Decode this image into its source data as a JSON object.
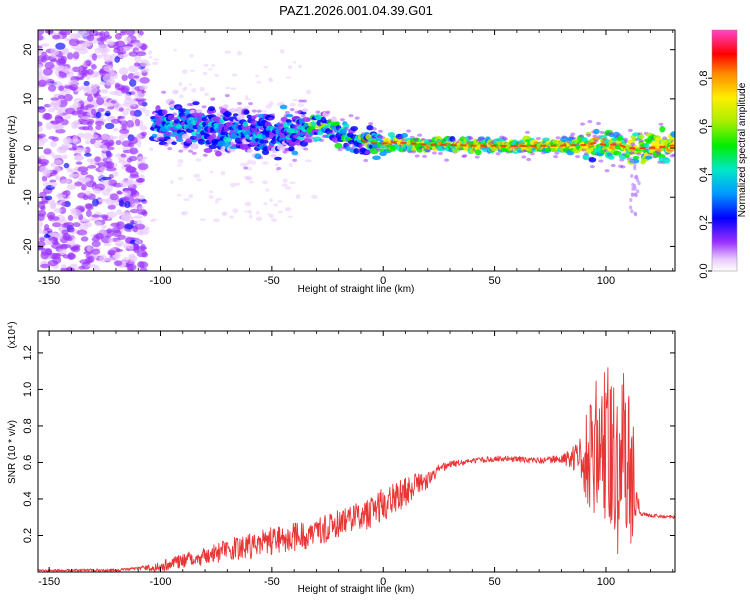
{
  "title": "PAZ1.2026.001.04.39.G01",
  "chart_data": [
    {
      "id": "spectrogram",
      "type": "heatmap",
      "xlabel": "Height of straight line (km)",
      "ylabel": "Frequency (Hz)",
      "xlim": [
        -155,
        131
      ],
      "ylim": [
        -25,
        24
      ],
      "xticks": [
        -150,
        -100,
        -50,
        0,
        50,
        100
      ],
      "xtick_labels": [
        "-150",
        "-100",
        "-50",
        "0",
        "50",
        "100"
      ],
      "yticks": [
        -20,
        -10,
        0,
        10,
        20
      ],
      "ytick_labels": [
        "-20",
        "-10",
        "0",
        "10",
        "20"
      ],
      "ridge": {
        "x": [
          -100,
          -90,
          -80,
          -70,
          -60,
          -50,
          -40,
          -35,
          -30,
          -25,
          -20,
          -15,
          -10,
          -5,
          0,
          5,
          10,
          20,
          40,
          60,
          80,
          90,
          95,
          100,
          105,
          110,
          115,
          120,
          130
        ],
        "y": [
          5,
          4.6,
          4.0,
          3.5,
          3.2,
          2.8,
          3.2,
          4.2,
          4.6,
          4.0,
          3.2,
          2.2,
          1.5,
          1.0,
          0.9,
          1.2,
          1.0,
          0.7,
          0.5,
          0.4,
          0.5,
          0.6,
          1.0,
          0.6,
          0.8,
          0.0,
          -0.1,
          0.0,
          0.5
        ]
      },
      "colorbar": {
        "label": "Normalized spectral amplitude",
        "range": [
          0,
          1
        ],
        "ticks": [
          0.0,
          0.2,
          0.4,
          0.6,
          0.8
        ],
        "tick_labels": [
          "0.0",
          "0.2",
          "0.4",
          "0.6",
          "0.8"
        ]
      }
    },
    {
      "id": "snr",
      "type": "line",
      "xlabel": "Height of straight line (km)",
      "ylabel": "SNR (10 * v/v)",
      "y_multiplier_label": "(x10⁴)",
      "xlim": [
        -155,
        131
      ],
      "ylim": [
        0,
        1.32
      ],
      "xticks": [
        -150,
        -100,
        -50,
        0,
        50,
        100
      ],
      "xtick_labels": [
        "-150",
        "-100",
        "-50",
        "0",
        "50",
        "100"
      ],
      "yticks": [
        0.2,
        0.4,
        0.6,
        0.8,
        1.0,
        1.2
      ],
      "ytick_labels": [
        "0.2",
        "0.4",
        "0.6",
        "0.8",
        "1.0",
        "1.2"
      ],
      "series": [
        {
          "name": "SNR",
          "color": "#e83535",
          "envelope_x": [
            -155,
            -120,
            -100,
            -90,
            -80,
            -70,
            -60,
            -50,
            -40,
            -30,
            -20,
            -10,
            0,
            10,
            20,
            25,
            30,
            40,
            50,
            60,
            70,
            80,
            90,
            95,
            100,
            105,
            110,
            114,
            115,
            120,
            131
          ],
          "envelope_y": [
            0.01,
            0.01,
            0.03,
            0.06,
            0.09,
            0.12,
            0.14,
            0.17,
            0.19,
            0.22,
            0.26,
            0.3,
            0.37,
            0.44,
            0.51,
            0.56,
            0.59,
            0.61,
            0.62,
            0.62,
            0.61,
            0.62,
            0.62,
            0.6,
            0.58,
            0.56,
            0.54,
            0.57,
            0.32,
            0.31,
            0.3
          ],
          "noise_x": [
            -155,
            -110,
            -100,
            -80,
            -60,
            -40,
            -20,
            0,
            10,
            20,
            25,
            30,
            40,
            80,
            88,
            92,
            100,
            105,
            108,
            112,
            114,
            115,
            131
          ],
          "noise_amp": [
            0.005,
            0.008,
            0.03,
            0.05,
            0.07,
            0.08,
            0.08,
            0.09,
            0.08,
            0.05,
            0.03,
            0.02,
            0.015,
            0.02,
            0.1,
            0.3,
            0.4,
            0.5,
            0.6,
            0.4,
            0.2,
            0.01,
            0.01
          ]
        }
      ]
    }
  ]
}
